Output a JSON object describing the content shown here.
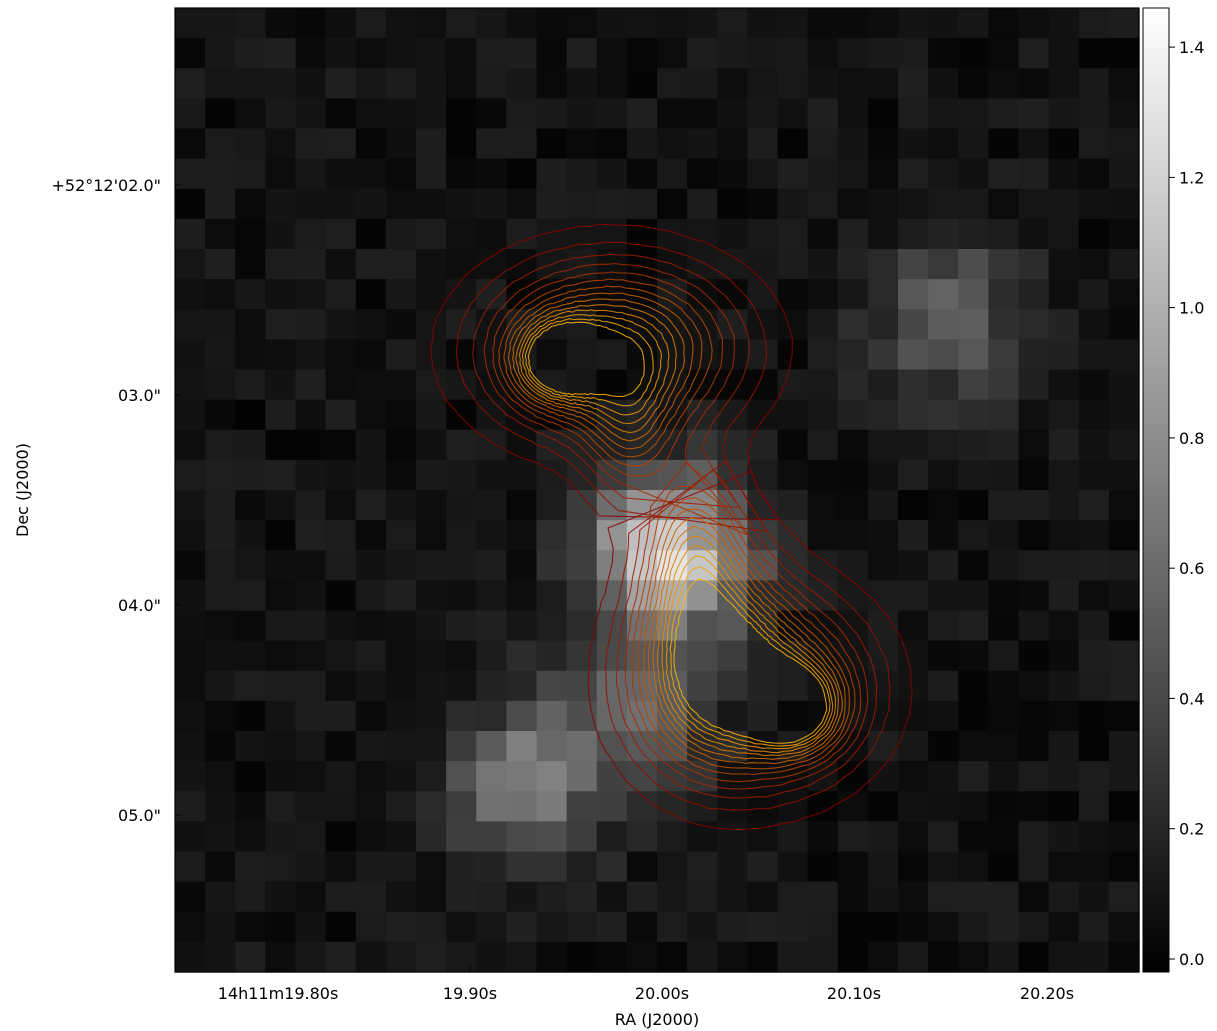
{
  "chart_data": {
    "type": "heatmap",
    "title": "",
    "xlabel": "RA (J2000)",
    "ylabel": "Dec (J2000)",
    "x_ticks": [
      "14h11m19.80s",
      "19.90s",
      "20.00s",
      "20.10s",
      "20.20s"
    ],
    "y_ticks": [
      "+52°12'02.0\"",
      "03.0\"",
      "04.0\"",
      "05.0\""
    ],
    "grid": false,
    "image": {
      "colormap": "gray",
      "nx": 32,
      "ny": 32,
      "background_level": 0.08,
      "features": [
        {
          "name": "central-diffuse-emission",
          "ra_s": 20.005,
          "dec_s": 3.75,
          "peak": 1.2
        },
        {
          "name": "southern-diffuse-emission",
          "ra_s": 19.93,
          "dec_s": 4.85,
          "peak": 0.6
        },
        {
          "name": "lower-center-emission",
          "ra_s": 19.985,
          "dec_s": 4.5,
          "peak": 0.5
        },
        {
          "name": "eastern-faint-emission",
          "ra_s": 20.15,
          "dec_s": 2.65,
          "peak": 0.5
        }
      ]
    },
    "colorbar": {
      "vmin": -0.02,
      "vmax": 1.46,
      "ticks": [
        "0.0",
        "0.2",
        "0.4",
        "0.6",
        "0.8",
        "1.0",
        "1.2",
        "1.4"
      ],
      "tick_values": [
        0.0,
        0.2,
        0.4,
        0.6,
        0.8,
        1.0,
        1.2,
        1.4
      ]
    },
    "contours": {
      "color_low": "#8b0000",
      "color_high": "#ffb300",
      "components": [
        {
          "name": "north-lobe",
          "ra_s": 19.952,
          "dec_s": 2.82
        },
        {
          "name": "south-lobe",
          "ra_s": 20.045,
          "dec_s": 4.35
        }
      ]
    }
  }
}
